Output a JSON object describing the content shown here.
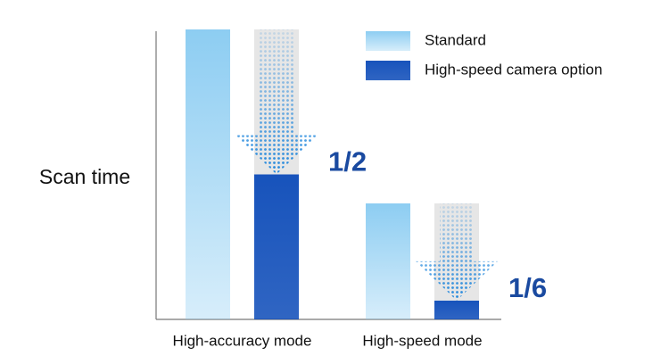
{
  "chart_data": {
    "type": "bar",
    "ylabel": "Scan time",
    "categories": [
      "High-accuracy mode",
      "High-speed mode"
    ],
    "series": [
      {
        "name": "Standard",
        "color": "#8dcdf2",
        "values": [
          100,
          40
        ]
      },
      {
        "name": "High-speed camera option",
        "color": "#0b4ab8",
        "values": [
          50,
          6.5
        ]
      }
    ],
    "ylim": [
      0,
      100
    ],
    "annotations": [
      "1/2",
      "1/6"
    ],
    "legend": "upper right"
  }
}
